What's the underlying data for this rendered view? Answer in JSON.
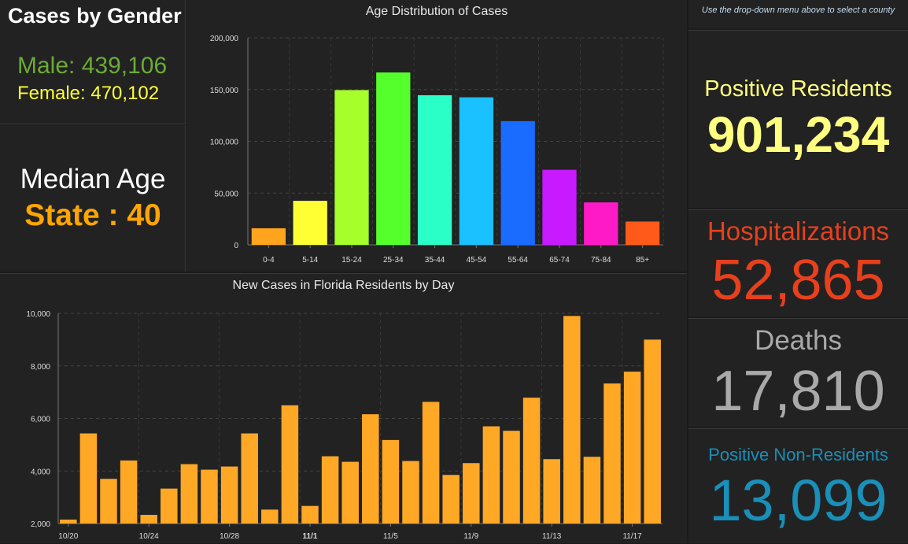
{
  "gender": {
    "title": "Cases by Gender",
    "male": "Male: 439,106",
    "female": "Female: 470,102"
  },
  "median_age": {
    "title": "Median Age",
    "value": "State : 40"
  },
  "hint": "Use the drop-down menu above to select a county",
  "stats": {
    "positive_residents": {
      "label": "Positive Residents",
      "value": "901,234",
      "color": "#ffff80"
    },
    "hospitalizations": {
      "label": "Hospitalizations",
      "value": "52,865",
      "color": "#e8401c"
    },
    "deaths": {
      "label": "Deaths",
      "value": "17,810",
      "color": "#a9a9a9"
    },
    "positive_non_residents": {
      "label": "Positive Non-Residents",
      "value": "13,099",
      "color": "#1a8fb8"
    }
  },
  "chart_data": [
    {
      "type": "bar",
      "title": "Age Distribution of Cases",
      "categories": [
        "0-4",
        "5-14",
        "15-24",
        "25-34",
        "35-44",
        "45-54",
        "55-64",
        "65-74",
        "75-84",
        "85+"
      ],
      "values": [
        16000,
        42500,
        149500,
        166500,
        144500,
        142500,
        119500,
        72500,
        41000,
        22500
      ],
      "colors": [
        "#ffa41c",
        "#ffff33",
        "#a6ff2b",
        "#55ff2b",
        "#2bffc8",
        "#1ac0ff",
        "#1a6bff",
        "#c81aff",
        "#ff1ac8",
        "#ff5a1a"
      ],
      "ylim": [
        0,
        200000
      ],
      "yticks": [
        "0",
        "50,000",
        "100,000",
        "150,000",
        "200,000"
      ],
      "ytick_values": [
        0,
        50000,
        100000,
        150000,
        200000
      ],
      "grid": true
    },
    {
      "type": "bar",
      "title": "New Cases in Florida Residents by Day",
      "values": [
        2150,
        5430,
        3700,
        4400,
        2330,
        3330,
        4260,
        4050,
        4170,
        5430,
        2530,
        6500,
        2670,
        4560,
        4350,
        6160,
        5180,
        4380,
        6630,
        3850,
        4300,
        5700,
        5530,
        6790,
        4450,
        9900,
        4540,
        7330,
        7780,
        9000
      ],
      "xticks": [
        "10/20",
        "10/24",
        "10/28",
        "11/1",
        "11/5",
        "11/9",
        "11/13",
        "11/17"
      ],
      "xtick_indices": [
        0,
        4,
        8,
        12,
        16,
        20,
        24,
        28
      ],
      "bold_ticks": [
        "11/1"
      ],
      "yticks": [
        "2,000",
        "4,000",
        "6,000",
        "8,000",
        "10,000"
      ],
      "ytick_values": [
        2000,
        4000,
        6000,
        8000,
        10000
      ],
      "ylim": [
        2000,
        10000
      ],
      "bar_color": "#ffa826",
      "grid": true
    }
  ]
}
